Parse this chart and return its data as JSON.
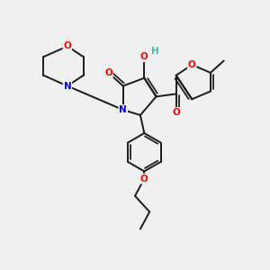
{
  "bg_color": "#f0f0f0",
  "bond_color": "#1a1a1a",
  "bond_width": 1.4,
  "atom_colors": {
    "O": "#ff0000",
    "N": "#0000cc",
    "H": "#4db8b8"
  },
  "font_size": 7.5,
  "fig_size": [
    3.0,
    3.0
  ],
  "dpi": 100
}
